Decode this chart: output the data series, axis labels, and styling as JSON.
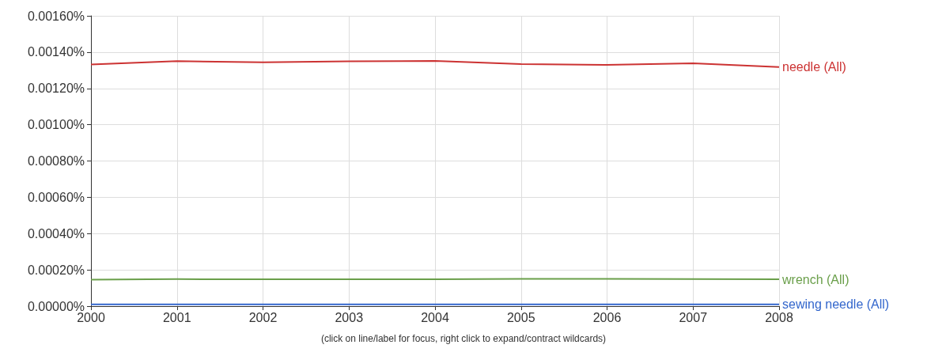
{
  "chart_data": {
    "type": "line",
    "x": [
      2000,
      2001,
      2002,
      2003,
      2004,
      2005,
      2006,
      2007,
      2008
    ],
    "series": [
      {
        "name": "needle (All)",
        "color": "#cc3333",
        "values": [
          0.001332,
          0.00135,
          0.001344,
          0.001349,
          0.001352,
          0.001334,
          0.00133,
          0.001338,
          0.001318
        ]
      },
      {
        "name": "wrench (All)",
        "color": "#6a9f4a",
        "values": [
          0.000146,
          0.000149,
          0.000148,
          0.000148,
          0.000148,
          0.00015,
          0.00015,
          0.000149,
          0.000148
        ]
      },
      {
        "name": "sewing needle (All)",
        "color": "#3366cc",
        "values": [
          1e-05,
          1e-05,
          1e-05,
          1e-05,
          1e-05,
          1e-05,
          1e-05,
          1e-05,
          1e-05
        ]
      }
    ],
    "xlim": [
      2000,
      2008
    ],
    "xticks": [
      2000,
      2001,
      2002,
      2003,
      2004,
      2005,
      2006,
      2007,
      2008
    ],
    "ylim": [
      0,
      0.0016
    ],
    "yticks": [
      {
        "value": 0,
        "label": "0.00000%"
      },
      {
        "value": 0.0002,
        "label": "0.00020%"
      },
      {
        "value": 0.0004,
        "label": "0.00040%"
      },
      {
        "value": 0.0006,
        "label": "0.00060%"
      },
      {
        "value": 0.0008,
        "label": "0.00080%"
      },
      {
        "value": 0.001,
        "label": "0.00100%"
      },
      {
        "value": 0.0012,
        "label": "0.00120%"
      },
      {
        "value": 0.0014,
        "label": "0.00140%"
      },
      {
        "value": 0.0016,
        "label": "0.00160%"
      }
    ],
    "grid": true,
    "marker": "none",
    "line_style": "solid",
    "annotations": [
      "(click on line/label for focus, right click to expand/contract wildcards)"
    ]
  }
}
